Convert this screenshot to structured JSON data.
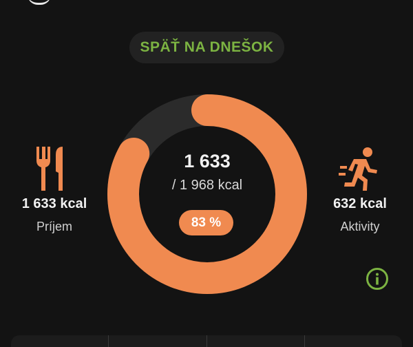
{
  "header": {
    "back_to_today_label": "SPÄŤ NA DNEŠOK"
  },
  "summary": {
    "consumed_value": "1 633",
    "goal_text": "/ 1 968 kcal",
    "percent_label": "83 %",
    "progress_fraction": 0.83
  },
  "intake": {
    "value": "1 633 kcal",
    "label": "Príjem",
    "icon": "fork-knife-icon"
  },
  "activity": {
    "value": "632 kcal",
    "label": "Aktivity",
    "icon": "running-person-icon"
  },
  "info": {
    "icon": "info-icon"
  },
  "colors": {
    "background": "#131313",
    "accent_orange": "#f08a50",
    "track_gray": "#2b2b2b",
    "accent_green": "#7cb342"
  }
}
